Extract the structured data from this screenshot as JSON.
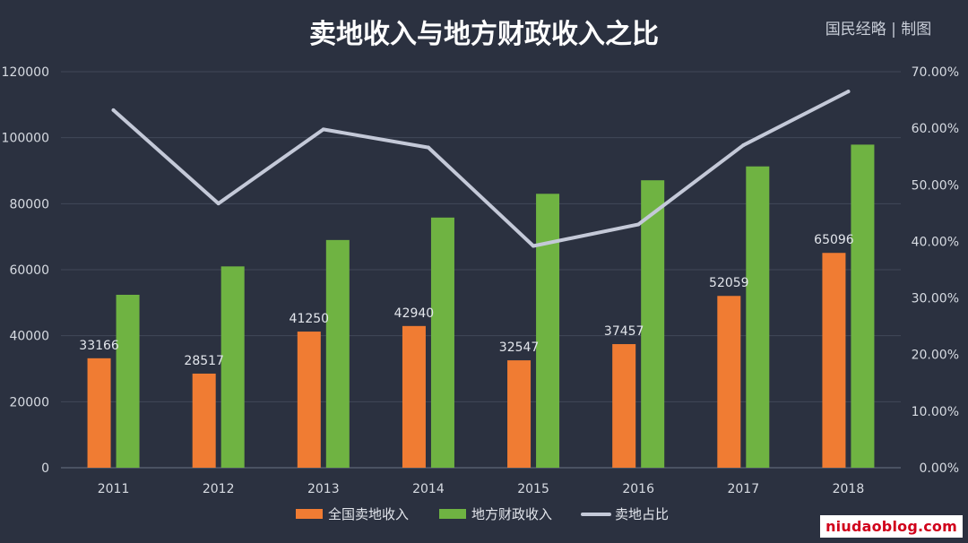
{
  "chart_data": {
    "type": "bar",
    "title": "卖地收入与地方财政收入之比",
    "credit": "国民经略 | 制图",
    "categories": [
      "2011",
      "2012",
      "2013",
      "2014",
      "2015",
      "2016",
      "2017",
      "2018"
    ],
    "series": [
      {
        "name": "全国卖地收入",
        "kind": "bar",
        "color": "#f07c33",
        "values": [
          33166,
          28517,
          41250,
          42940,
          32547,
          37457,
          52059,
          65096
        ],
        "labels": [
          "33166",
          "28517",
          "41250",
          "42940",
          "32547",
          "37457",
          "52059",
          "65096"
        ]
      },
      {
        "name": "地方财政收入",
        "kind": "bar",
        "color": "#6fb342",
        "values": [
          52400,
          61000,
          69000,
          75800,
          83000,
          87100,
          91300,
          97900
        ]
      },
      {
        "name": "卖地占比",
        "kind": "line",
        "axis": "right",
        "color": "#c4c9d8",
        "values": [
          0.632,
          0.467,
          0.598,
          0.566,
          0.392,
          0.43,
          0.57,
          0.665
        ]
      }
    ],
    "y_left": {
      "ylim": [
        0,
        120000
      ],
      "ticks": [
        "0",
        "20000",
        "40000",
        "60000",
        "80000",
        "100000",
        "120000"
      ]
    },
    "y_right": {
      "ylim": [
        0,
        0.7
      ],
      "ticks": [
        "0.00%",
        "10.00%",
        "20.00%",
        "30.00%",
        "40.00%",
        "50.00%",
        "60.00%",
        "70.00%"
      ]
    },
    "grid": true,
    "legend_position": "bottom"
  },
  "watermark": {
    "text": "niudaoblog.com",
    "color": "#d0001b"
  }
}
